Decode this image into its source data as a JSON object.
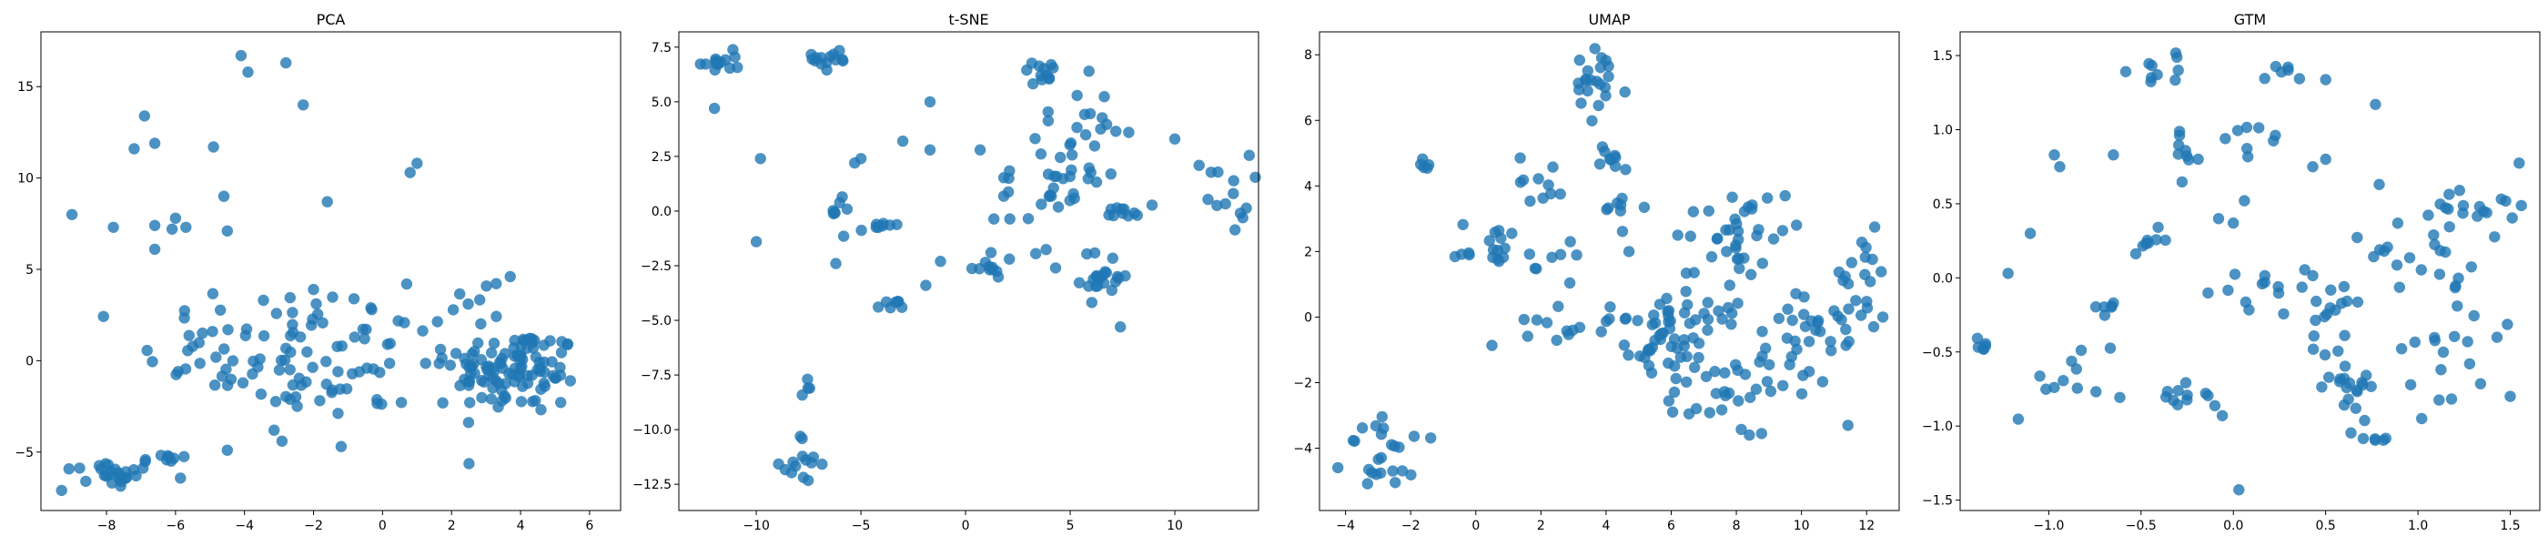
{
  "chart_data": [
    {
      "type": "scatter",
      "title": "PCA",
      "xlim": [
        -9.9,
        6.9
      ],
      "ylim": [
        -8.2,
        18
      ],
      "xticks": [
        -8,
        -6,
        -4,
        -2,
        0,
        2,
        4,
        6
      ],
      "yticks": [
        -5,
        0,
        5,
        10,
        15
      ],
      "color": "#1f77b4",
      "clusters": [
        {
          "center": [
            -7.8,
            -6.1
          ],
          "spread": [
            0.7,
            0.45
          ],
          "count": 26
        },
        {
          "center": [
            -6.2,
            -5.4
          ],
          "spread": [
            0.4,
            0.15
          ],
          "count": 7
        },
        {
          "center": [
            -3.2,
            0.6
          ],
          "spread": [
            1.9,
            1.6
          ],
          "count": 70
        },
        {
          "center": [
            -1.2,
            -1.6
          ],
          "spread": [
            1.6,
            1.6
          ],
          "count": 22
        },
        {
          "center": [
            3.9,
            -0.6
          ],
          "spread": [
            0.9,
            1.2
          ],
          "count": 95
        },
        {
          "center": [
            2.4,
            0.6
          ],
          "spread": [
            1.0,
            1.5
          ],
          "count": 25
        },
        {
          "center": [
            -1.0,
            2.6
          ],
          "spread": [
            1.8,
            0.9
          ],
          "count": 12
        }
      ],
      "points": [
        [
          -9.0,
          8.0
        ],
        [
          -7.8,
          7.3
        ],
        [
          -7.2,
          11.6
        ],
        [
          -6.9,
          13.4
        ],
        [
          -6.6,
          11.9
        ],
        [
          -6.6,
          6.1
        ],
        [
          -6.0,
          7.8
        ],
        [
          -6.1,
          7.2
        ],
        [
          -5.7,
          7.3
        ],
        [
          -4.9,
          11.7
        ],
        [
          -4.6,
          9.0
        ],
        [
          -4.5,
          7.1
        ],
        [
          -4.1,
          16.7
        ],
        [
          -3.9,
          15.8
        ],
        [
          -2.8,
          16.3
        ],
        [
          -2.3,
          14.0
        ],
        [
          -1.6,
          8.7
        ],
        [
          0.8,
          10.3
        ],
        [
          1.0,
          10.8
        ],
        [
          -6.6,
          7.4
        ],
        [
          -9.3,
          -7.1
        ],
        [
          -8.6,
          -6.6
        ],
        [
          -2.0,
          3.9
        ],
        [
          3.7,
          4.6
        ],
        [
          0.7,
          4.2
        ],
        [
          -4.5,
          -4.9
        ],
        [
          -1.2,
          -4.7
        ]
      ]
    },
    {
      "type": "scatter",
      "title": "t-SNE",
      "xlim": [
        -13.7,
        14.0
      ],
      "ylim": [
        -13.7,
        8.2
      ],
      "xticks": [
        -10,
        -5,
        0,
        5,
        10
      ],
      "yticks": [
        -12.5,
        -10.0,
        -7.5,
        -5.0,
        -2.5,
        0.0,
        2.5,
        5.0,
        7.5
      ],
      "color": "#1f77b4",
      "clusters": [
        {
          "center": [
            -11.8,
            6.8
          ],
          "spread": [
            0.5,
            0.25
          ],
          "count": 14
        },
        {
          "center": [
            -6.3,
            7.0
          ],
          "spread": [
            0.5,
            0.35
          ],
          "count": 14
        },
        {
          "center": [
            -7.8,
            -11.6
          ],
          "spread": [
            0.45,
            0.7
          ],
          "count": 14
        },
        {
          "center": [
            -7.6,
            -8.1
          ],
          "spread": [
            0.2,
            0.2
          ],
          "count": 4
        },
        {
          "center": [
            3.6,
            6.4
          ],
          "spread": [
            0.5,
            0.25
          ],
          "count": 12
        },
        {
          "center": [
            6.7,
            -3.0
          ],
          "spread": [
            0.6,
            0.6
          ],
          "count": 22
        },
        {
          "center": [
            7.6,
            0.0
          ],
          "spread": [
            0.4,
            0.15
          ],
          "count": 10
        },
        {
          "center": [
            12.2,
            0.8
          ],
          "spread": [
            0.7,
            0.9
          ],
          "count": 14
        },
        {
          "center": [
            -4.0,
            -0.7
          ],
          "spread": [
            0.6,
            0.1
          ],
          "count": 8
        },
        {
          "center": [
            -3.6,
            -4.3
          ],
          "spread": [
            0.3,
            0.12
          ],
          "count": 7
        },
        {
          "center": [
            -6.1,
            0.0
          ],
          "spread": [
            0.3,
            0.4
          ],
          "count": 8
        },
        {
          "center": [
            1.0,
            -2.6
          ],
          "spread": [
            0.4,
            0.1
          ],
          "count": 8
        },
        {
          "center": [
            5.0,
            2.2
          ],
          "spread": [
            1.4,
            1.7
          ],
          "count": 40
        },
        {
          "center": [
            2.5,
            -0.5
          ],
          "spread": [
            1.0,
            1.0
          ],
          "count": 14
        }
      ],
      "points": [
        [
          -12.0,
          4.7
        ],
        [
          -9.8,
          2.4
        ],
        [
          -10.0,
          -1.4
        ],
        [
          -5.3,
          2.2
        ],
        [
          -5.0,
          2.4
        ],
        [
          -3.0,
          3.2
        ],
        [
          -1.7,
          5.0
        ],
        [
          -1.7,
          2.8
        ],
        [
          -1.2,
          -2.3
        ],
        [
          0.7,
          2.8
        ],
        [
          10.0,
          3.3
        ],
        [
          7.8,
          3.6
        ],
        [
          7.4,
          -5.3
        ],
        [
          5.9,
          6.4
        ],
        [
          -6.2,
          -2.4
        ],
        [
          -1.9,
          -3.4
        ]
      ]
    },
    {
      "type": "scatter",
      "title": "UMAP",
      "xlim": [
        -4.8,
        13.0
      ],
      "ylim": [
        -5.9,
        8.7
      ],
      "xticks": [
        -4,
        -2,
        0,
        2,
        4,
        6,
        8,
        10,
        12
      ],
      "yticks": [
        -4,
        -2,
        0,
        2,
        4,
        6,
        8
      ],
      "color": "#1f77b4",
      "clusters": [
        {
          "center": [
            -2.6,
            -4.2
          ],
          "spread": [
            0.7,
            0.55
          ],
          "count": 24
        },
        {
          "center": [
            -1.5,
            4.6
          ],
          "spread": [
            0.2,
            0.12
          ],
          "count": 5
        },
        {
          "center": [
            3.7,
            7.0
          ],
          "spread": [
            0.5,
            0.6
          ],
          "count": 22
        },
        {
          "center": [
            4.1,
            4.9
          ],
          "spread": [
            0.2,
            0.35
          ],
          "count": 8
        },
        {
          "center": [
            4.5,
            3.3
          ],
          "spread": [
            0.35,
            0.25
          ],
          "count": 8
        },
        {
          "center": [
            0.6,
            2.2
          ],
          "spread": [
            0.6,
            0.35
          ],
          "count": 16
        },
        {
          "center": [
            2.0,
            4.2
          ],
          "spread": [
            0.35,
            0.4
          ],
          "count": 10
        },
        {
          "center": [
            2.6,
            1.6
          ],
          "spread": [
            0.7,
            0.3
          ],
          "count": 8
        },
        {
          "center": [
            3.2,
            -0.3
          ],
          "spread": [
            1.3,
            0.3
          ],
          "count": 20
        },
        {
          "center": [
            5.0,
            -1.0
          ],
          "spread": [
            0.3,
            0.4
          ],
          "count": 10
        },
        {
          "center": [
            7.2,
            0.0
          ],
          "spread": [
            1.1,
            1.2
          ],
          "count": 45
        },
        {
          "center": [
            8.1,
            2.9
          ],
          "spread": [
            0.6,
            0.5
          ],
          "count": 25
        },
        {
          "center": [
            7.8,
            -2.4
          ],
          "spread": [
            0.9,
            0.6
          ],
          "count": 30
        },
        {
          "center": [
            10.2,
            -0.6
          ],
          "spread": [
            0.9,
            0.9
          ],
          "count": 30
        },
        {
          "center": [
            11.8,
            1.0
          ],
          "spread": [
            0.6,
            0.8
          ],
          "count": 18
        },
        {
          "center": [
            6.2,
            -0.4
          ],
          "spread": [
            0.6,
            0.3
          ],
          "count": 10
        }
      ],
      "points": [
        [
          2.9,
          2.3
        ],
        [
          4.6,
          4.5
        ],
        [
          6.2,
          2.5
        ],
        [
          8.4,
          -3.6
        ],
        [
          12.5,
          0.0
        ],
        [
          -0.2,
          1.9
        ],
        [
          7.7,
          2.0
        ],
        [
          9.5,
          3.7
        ]
      ]
    },
    {
      "type": "scatter",
      "title": "GTM",
      "xlim": [
        -1.48,
        1.66
      ],
      "ylim": [
        -1.57,
        1.66
      ],
      "xticks": [
        -1.0,
        -0.5,
        0.0,
        0.5,
        1.0,
        1.5
      ],
      "yticks": [
        -1.5,
        -1.0,
        -0.5,
        0.0,
        0.5,
        1.0,
        1.5
      ],
      "color": "#1f77b4",
      "clusters": [
        {
          "center": [
            -1.36,
            -0.46
          ],
          "spread": [
            0.04,
            0.03
          ],
          "count": 6
        },
        {
          "center": [
            -0.9,
            -0.7
          ],
          "spread": [
            0.15,
            0.12
          ],
          "count": 10
        },
        {
          "center": [
            -0.72,
            -0.2
          ],
          "spread": [
            0.05,
            0.15
          ],
          "count": 8
        },
        {
          "center": [
            -0.35,
            1.42
          ],
          "spread": [
            0.1,
            0.06
          ],
          "count": 10
        },
        {
          "center": [
            -0.25,
            0.82
          ],
          "spread": [
            0.04,
            0.07
          ],
          "count": 9
        },
        {
          "center": [
            -0.45,
            0.25
          ],
          "spread": [
            0.05,
            0.04
          ],
          "count": 8
        },
        {
          "center": [
            -0.37,
            -0.83
          ],
          "spread": [
            0.12,
            0.05
          ],
          "count": 10
        },
        {
          "center": [
            0.3,
            1.34
          ],
          "spread": [
            0.09,
            0.06
          ],
          "count": 7
        },
        {
          "center": [
            0.12,
            -0.05
          ],
          "spread": [
            0.12,
            0.12
          ],
          "count": 10
        },
        {
          "center": [
            0.5,
            -0.3
          ],
          "spread": [
            0.1,
            0.2
          ],
          "count": 20
        },
        {
          "center": [
            0.6,
            -0.7
          ],
          "spread": [
            0.12,
            0.1
          ],
          "count": 18
        },
        {
          "center": [
            0.75,
            -1.07
          ],
          "spread": [
            0.07,
            0.02
          ],
          "count": 6
        },
        {
          "center": [
            0.82,
            0.15
          ],
          "spread": [
            0.08,
            0.12
          ],
          "count": 8
        },
        {
          "center": [
            1.15,
            0.15
          ],
          "spread": [
            0.12,
            0.2
          ],
          "count": 14
        },
        {
          "center": [
            1.35,
            0.5
          ],
          "spread": [
            0.12,
            0.08
          ],
          "count": 16
        },
        {
          "center": [
            1.15,
            -0.4
          ],
          "spread": [
            0.15,
            0.3
          ],
          "count": 16
        },
        {
          "center": [
            0.15,
            0.95
          ],
          "spread": [
            0.1,
            0.06
          ],
          "count": 8
        }
      ],
      "points": [
        [
          -1.22,
          0.03
        ],
        [
          -1.1,
          0.3
        ],
        [
          -0.97,
          0.83
        ],
        [
          -0.94,
          0.75
        ],
        [
          -0.65,
          0.83
        ],
        [
          -0.08,
          0.4
        ],
        [
          0.0,
          0.37
        ],
        [
          0.06,
          0.52
        ],
        [
          0.43,
          0.75
        ],
        [
          0.5,
          0.8
        ],
        [
          0.77,
          1.17
        ],
        [
          0.79,
          0.63
        ],
        [
          0.03,
          -1.43
        ],
        [
          -0.06,
          -0.93
        ],
        [
          1.02,
          -0.95
        ],
        [
          1.28,
          -0.58
        ],
        [
          1.5,
          -0.8
        ],
        [
          -0.15,
          -0.78
        ]
      ]
    }
  ]
}
